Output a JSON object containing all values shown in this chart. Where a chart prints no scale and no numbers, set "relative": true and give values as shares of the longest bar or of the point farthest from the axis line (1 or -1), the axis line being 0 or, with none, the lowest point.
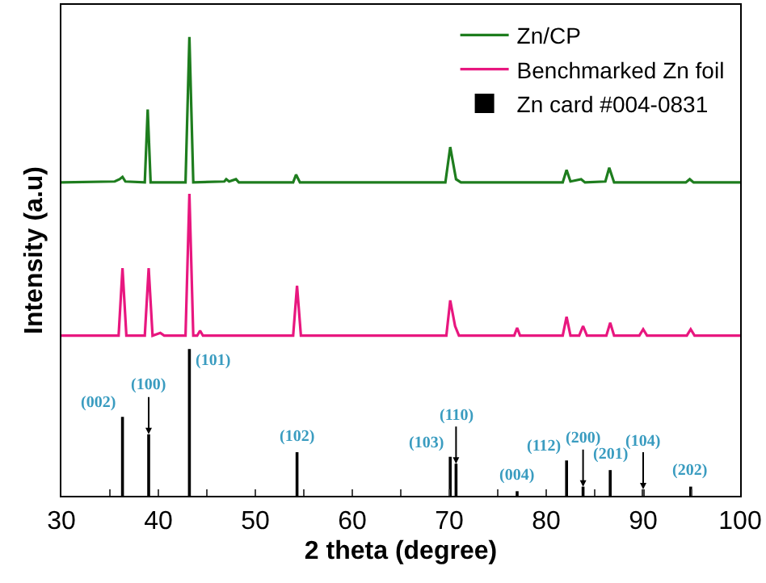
{
  "chart_data": {
    "type": "line",
    "relative": true,
    "xlabel": "2 theta (degree)",
    "ylabel": "Intensity (a.u)",
    "xlim": [
      30,
      100
    ],
    "xticks": [
      30,
      {
        "value": 35,
        "label": null
      },
      40,
      {
        "value": 45,
        "label": null
      },
      50,
      {
        "value": 55,
        "label": null
      },
      60,
      {
        "value": 65,
        "label": null
      },
      70,
      {
        "value": 75,
        "label": null
      },
      80,
      {
        "value": 85,
        "label": null
      },
      90,
      {
        "value": 95,
        "label": null
      },
      100
    ],
    "legend": "top right",
    "grid": false,
    "marker": "none",
    "line_style": "solid",
    "series": [
      {
        "name": "Zn/CP",
        "color": "#1e7d1e",
        "x": [
          30,
          35.5,
          36.0,
          36.3,
          36.6,
          38.6,
          38.9,
          39.2,
          42.8,
          43.2,
          43.6,
          46.8,
          47.0,
          47.3,
          48.0,
          48.3,
          53.9,
          54.2,
          54.6,
          69.6,
          70.1,
          70.7,
          71.2,
          81.7,
          82.1,
          82.5,
          83.6,
          84.0,
          86.1,
          86.5,
          87.0,
          94.4,
          94.8,
          95.2,
          100
        ],
        "values": [
          0.683,
          0.685,
          0.69,
          0.695,
          0.685,
          0.683,
          0.842,
          0.683,
          0.683,
          1.0,
          0.683,
          0.685,
          0.69,
          0.685,
          0.69,
          0.683,
          0.683,
          0.7,
          0.683,
          0.683,
          0.76,
          0.69,
          0.683,
          0.683,
          0.71,
          0.685,
          0.69,
          0.683,
          0.685,
          0.715,
          0.683,
          0.683,
          0.69,
          0.683,
          0.683
        ]
      },
      {
        "name": "Benchmarked Zn foil",
        "color": "#e8177f",
        "x": [
          30,
          35.9,
          36.3,
          36.7,
          38.6,
          39.0,
          39.4,
          40.2,
          40.6,
          42.8,
          43.2,
          43.6,
          44.0,
          44.3,
          44.6,
          53.9,
          54.3,
          54.7,
          69.7,
          70.1,
          70.6,
          71.0,
          76.7,
          77.0,
          77.3,
          81.7,
          82.1,
          82.5,
          83.4,
          83.8,
          84.2,
          86.2,
          86.6,
          87.0,
          89.6,
          90.0,
          90.4,
          94.5,
          94.9,
          95.3,
          100
        ],
        "values": [
          0.349,
          0.349,
          0.496,
          0.349,
          0.349,
          0.496,
          0.349,
          0.355,
          0.349,
          0.349,
          0.658,
          0.349,
          0.349,
          0.36,
          0.349,
          0.349,
          0.458,
          0.349,
          0.349,
          0.426,
          0.37,
          0.349,
          0.349,
          0.366,
          0.349,
          0.349,
          0.39,
          0.349,
          0.349,
          0.37,
          0.349,
          0.349,
          0.377,
          0.349,
          0.349,
          0.363,
          0.349,
          0.349,
          0.363,
          0.349,
          0.349
        ]
      },
      {
        "name": "Zn card #004-0831",
        "type": "bar",
        "color": "#000000",
        "x": [
          36.3,
          39.0,
          43.2,
          54.3,
          70.1,
          70.7,
          77.0,
          82.1,
          83.8,
          86.6,
          90.0,
          94.9
        ],
        "values": [
          0.172,
          0.134,
          0.32,
          0.095,
          0.085,
          0.07,
          0.01,
          0.077,
          0.02,
          0.056,
          0.014,
          0.02
        ]
      }
    ],
    "annotations": [
      {
        "text": "(002)",
        "x": 36.3,
        "y": 0.172
      },
      {
        "text": "(100)",
        "x": 39.0,
        "y": 0.134
      },
      {
        "text": "(101)",
        "x": 43.2,
        "y": 0.32
      },
      {
        "text": "(102)",
        "x": 54.3,
        "y": 0.095
      },
      {
        "text": "(103)",
        "x": 70.1,
        "y": 0.085
      },
      {
        "text": "(110)",
        "x": 70.7,
        "y": 0.07
      },
      {
        "text": "(004)",
        "x": 77.0,
        "y": 0.01
      },
      {
        "text": "(112)",
        "x": 82.1,
        "y": 0.077
      },
      {
        "text": "(200)",
        "x": 83.8,
        "y": 0.02
      },
      {
        "text": "(201)",
        "x": 86.6,
        "y": 0.056
      },
      {
        "text": "(104)",
        "x": 90.0,
        "y": 0.014
      },
      {
        "text": "(202)",
        "x": 94.9,
        "y": 0.02
      }
    ]
  }
}
